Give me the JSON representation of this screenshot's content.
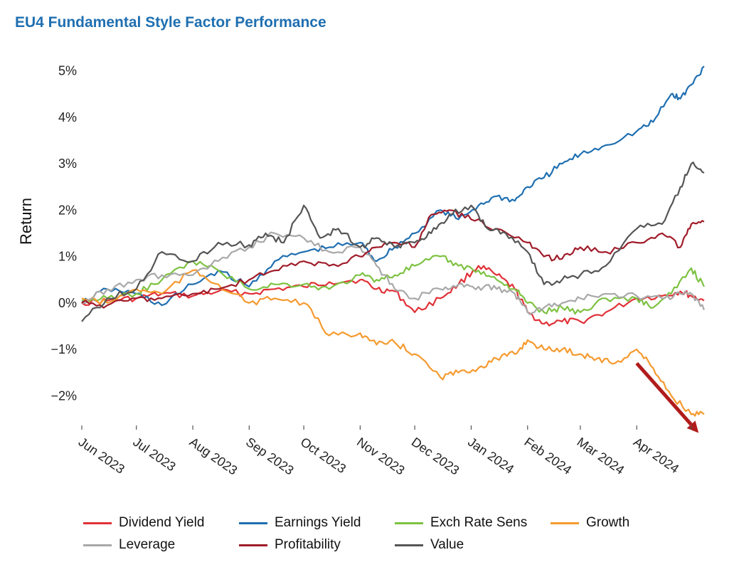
{
  "chart_data": {
    "type": "line",
    "title": "EU4 Fundamental Style Factor Performance",
    "ylabel": "Return",
    "xlabel": "",
    "ylim": [
      -2.7,
      5.3
    ],
    "yticks": [
      -2,
      -1,
      0,
      1,
      2,
      3,
      4,
      5
    ],
    "ytick_labels": [
      "−2%",
      "−1%",
      "0%",
      "1%",
      "2%",
      "3%",
      "4%",
      "5%"
    ],
    "xlim": [
      "2023-06-01",
      "2024-05-10"
    ],
    "xticks": [
      "2023-06-01",
      "2023-07-01",
      "2023-08-01",
      "2023-09-01",
      "2023-10-01",
      "2023-11-01",
      "2023-12-01",
      "2024-01-01",
      "2024-02-01",
      "2024-03-01",
      "2024-04-01",
      "2024-05-01"
    ],
    "xtick_labels": [
      "Jun 2023",
      "Jul 2023",
      "Aug 2023",
      "Sep 2023",
      "Oct 2023",
      "Nov 2023",
      "Dec 2023",
      "Jan 2024",
      "Feb 2024",
      "Mar 2024",
      "Apr 2024",
      ""
    ],
    "grid": false,
    "legend_position": "bottom",
    "annotation": {
      "type": "arrow",
      "from": [
        "2024-04-01",
        -1.3
      ],
      "to": [
        "2024-05-05",
        -2.8
      ],
      "color": "#b01c1c"
    },
    "series": [
      {
        "name": "Dividend Yield",
        "color": "#e03137",
        "points": [
          [
            "2023-06-01",
            0
          ],
          [
            "2023-06-15",
            0.05
          ],
          [
            "2023-07-01",
            0.1
          ],
          [
            "2023-07-15",
            0.2
          ],
          [
            "2023-08-01",
            0.15
          ],
          [
            "2023-08-15",
            0.25
          ],
          [
            "2023-09-01",
            0.2
          ],
          [
            "2023-09-15",
            0.3
          ],
          [
            "2023-10-01",
            0.35
          ],
          [
            "2023-10-15",
            0.45
          ],
          [
            "2023-11-01",
            0.5
          ],
          [
            "2023-11-10",
            0.3
          ],
          [
            "2023-11-20",
            0.25
          ],
          [
            "2023-12-01",
            -0.2
          ],
          [
            "2023-12-15",
            0.1
          ],
          [
            "2023-12-25",
            0.4
          ],
          [
            "2024-01-05",
            0.8
          ],
          [
            "2024-01-15",
            0.6
          ],
          [
            "2024-01-25",
            0.3
          ],
          [
            "2024-02-01",
            -0.2
          ],
          [
            "2024-02-10",
            -0.45
          ],
          [
            "2024-02-20",
            -0.4
          ],
          [
            "2024-03-01",
            -0.4
          ],
          [
            "2024-03-15",
            -0.2
          ],
          [
            "2024-04-01",
            0.1
          ],
          [
            "2024-04-15",
            0.15
          ],
          [
            "2024-04-25",
            0.25
          ],
          [
            "2024-05-01",
            0.15
          ],
          [
            "2024-05-08",
            0.05
          ]
        ]
      },
      {
        "name": "Earnings Yield",
        "color": "#1f6fb1",
        "points": [
          [
            "2023-06-01",
            0
          ],
          [
            "2023-06-15",
            0.3
          ],
          [
            "2023-07-01",
            0.2
          ],
          [
            "2023-07-15",
            -0.05
          ],
          [
            "2023-08-01",
            0.4
          ],
          [
            "2023-08-15",
            0.7
          ],
          [
            "2023-09-01",
            0.35
          ],
          [
            "2023-09-15",
            0.9
          ],
          [
            "2023-10-01",
            1.1
          ],
          [
            "2023-10-15",
            1.2
          ],
          [
            "2023-11-01",
            1.3
          ],
          [
            "2023-11-10",
            0.9
          ],
          [
            "2023-11-20",
            1.2
          ],
          [
            "2023-12-01",
            1.5
          ],
          [
            "2023-12-15",
            2.0
          ],
          [
            "2023-12-25",
            1.8
          ],
          [
            "2024-01-05",
            2.1
          ],
          [
            "2024-01-15",
            2.3
          ],
          [
            "2024-01-25",
            2.2
          ],
          [
            "2024-02-01",
            2.5
          ],
          [
            "2024-02-10",
            2.7
          ],
          [
            "2024-02-20",
            3.0
          ],
          [
            "2024-03-01",
            3.2
          ],
          [
            "2024-03-15",
            3.4
          ],
          [
            "2024-04-01",
            3.7
          ],
          [
            "2024-04-10",
            3.9
          ],
          [
            "2024-04-20",
            4.5
          ],
          [
            "2024-04-25",
            4.4
          ],
          [
            "2024-05-01",
            4.7
          ],
          [
            "2024-05-08",
            5.1
          ]
        ]
      },
      {
        "name": "Exch Rate Sens",
        "color": "#7dc242",
        "points": [
          [
            "2023-06-01",
            0.05
          ],
          [
            "2023-06-15",
            0.1
          ],
          [
            "2023-07-01",
            0.2
          ],
          [
            "2023-07-15",
            0.5
          ],
          [
            "2023-08-01",
            0.9
          ],
          [
            "2023-08-15",
            0.7
          ],
          [
            "2023-09-01",
            0.3
          ],
          [
            "2023-09-15",
            0.4
          ],
          [
            "2023-10-01",
            0.4
          ],
          [
            "2023-10-15",
            0.3
          ],
          [
            "2023-11-01",
            0.6
          ],
          [
            "2023-11-10",
            0.5
          ],
          [
            "2023-11-20",
            0.6
          ],
          [
            "2023-12-01",
            0.8
          ],
          [
            "2023-12-15",
            1.0
          ],
          [
            "2023-12-25",
            0.8
          ],
          [
            "2024-01-05",
            0.7
          ],
          [
            "2024-01-15",
            0.5
          ],
          [
            "2024-01-25",
            0.3
          ],
          [
            "2024-02-01",
            0.0
          ],
          [
            "2024-02-10",
            -0.2
          ],
          [
            "2024-02-20",
            -0.1
          ],
          [
            "2024-03-01",
            -0.2
          ],
          [
            "2024-03-15",
            0.1
          ],
          [
            "2024-04-01",
            0.1
          ],
          [
            "2024-04-10",
            -0.1
          ],
          [
            "2024-04-20",
            0.2
          ],
          [
            "2024-05-01",
            0.75
          ],
          [
            "2024-05-08",
            0.35
          ]
        ]
      },
      {
        "name": "Growth",
        "color": "#f59a2f",
        "points": [
          [
            "2023-06-01",
            0.1
          ],
          [
            "2023-06-15",
            0.0
          ],
          [
            "2023-07-01",
            0.3
          ],
          [
            "2023-07-15",
            0.2
          ],
          [
            "2023-08-01",
            0.7
          ],
          [
            "2023-08-15",
            0.4
          ],
          [
            "2023-09-01",
            0.0
          ],
          [
            "2023-09-15",
            0.1
          ],
          [
            "2023-10-01",
            0.0
          ],
          [
            "2023-10-15",
            -0.7
          ],
          [
            "2023-11-01",
            -0.65
          ],
          [
            "2023-11-10",
            -0.9
          ],
          [
            "2023-11-20",
            -0.85
          ],
          [
            "2023-12-01",
            -1.1
          ],
          [
            "2023-12-15",
            -1.6
          ],
          [
            "2023-12-25",
            -1.5
          ],
          [
            "2024-01-05",
            -1.4
          ],
          [
            "2024-01-15",
            -1.2
          ],
          [
            "2024-01-25",
            -1.1
          ],
          [
            "2024-02-01",
            -0.8
          ],
          [
            "2024-02-10",
            -1.0
          ],
          [
            "2024-02-20",
            -1.0
          ],
          [
            "2024-03-01",
            -1.1
          ],
          [
            "2024-03-10",
            -1.2
          ],
          [
            "2024-03-20",
            -1.3
          ],
          [
            "2024-04-01",
            -1.0
          ],
          [
            "2024-04-10",
            -1.4
          ],
          [
            "2024-04-20",
            -2.0
          ],
          [
            "2024-05-01",
            -2.4
          ],
          [
            "2024-05-08",
            -2.4
          ]
        ]
      },
      {
        "name": "Leverage",
        "color": "#a8a8a8",
        "points": [
          [
            "2023-06-01",
            0
          ],
          [
            "2023-06-15",
            0.3
          ],
          [
            "2023-07-01",
            0.5
          ],
          [
            "2023-07-15",
            0.6
          ],
          [
            "2023-08-01",
            0.6
          ],
          [
            "2023-08-15",
            0.9
          ],
          [
            "2023-09-01",
            1.2
          ],
          [
            "2023-09-15",
            1.5
          ],
          [
            "2023-10-01",
            1.4
          ],
          [
            "2023-10-15",
            1.1
          ],
          [
            "2023-11-01",
            1.2
          ],
          [
            "2023-11-10",
            0.8
          ],
          [
            "2023-11-20",
            0.3
          ],
          [
            "2023-12-01",
            0.1
          ],
          [
            "2023-12-15",
            0.3
          ],
          [
            "2023-12-25",
            0.4
          ],
          [
            "2024-01-05",
            0.35
          ],
          [
            "2024-01-15",
            0.3
          ],
          [
            "2024-01-25",
            0.2
          ],
          [
            "2024-02-01",
            -0.2
          ],
          [
            "2024-02-10",
            -0.1
          ],
          [
            "2024-02-20",
            0.0
          ],
          [
            "2024-03-01",
            0.1
          ],
          [
            "2024-03-15",
            0.2
          ],
          [
            "2024-04-01",
            0.15
          ],
          [
            "2024-04-15",
            0.1
          ],
          [
            "2024-04-25",
            0.2
          ],
          [
            "2024-05-01",
            0.2
          ],
          [
            "2024-05-08",
            -0.15
          ]
        ]
      },
      {
        "name": "Profitability",
        "color": "#a01c2a",
        "points": [
          [
            "2023-06-01",
            0
          ],
          [
            "2023-06-15",
            -0.05
          ],
          [
            "2023-07-01",
            0.1
          ],
          [
            "2023-07-15",
            0.1
          ],
          [
            "2023-08-01",
            0.2
          ],
          [
            "2023-08-15",
            0.3
          ],
          [
            "2023-09-01",
            0.5
          ],
          [
            "2023-09-15",
            0.7
          ],
          [
            "2023-10-01",
            0.9
          ],
          [
            "2023-10-15",
            0.8
          ],
          [
            "2023-11-01",
            1.0
          ],
          [
            "2023-11-10",
            1.2
          ],
          [
            "2023-11-20",
            1.3
          ],
          [
            "2023-12-01",
            1.2
          ],
          [
            "2023-12-10",
            1.9
          ],
          [
            "2023-12-20",
            2.0
          ],
          [
            "2024-01-01",
            1.8
          ],
          [
            "2024-01-15",
            1.6
          ],
          [
            "2024-02-01",
            1.3
          ],
          [
            "2024-02-10",
            1.0
          ],
          [
            "2024-02-20",
            0.95
          ],
          [
            "2024-03-01",
            1.2
          ],
          [
            "2024-03-15",
            1.1
          ],
          [
            "2024-04-01",
            1.3
          ],
          [
            "2024-04-15",
            1.5
          ],
          [
            "2024-04-25",
            1.2
          ],
          [
            "2024-05-01",
            1.7
          ],
          [
            "2024-05-08",
            1.75
          ]
        ]
      },
      {
        "name": "Value",
        "color": "#555555",
        "points": [
          [
            "2023-06-01",
            -0.4
          ],
          [
            "2023-06-15",
            0.1
          ],
          [
            "2023-07-01",
            0.3
          ],
          [
            "2023-07-15",
            1.1
          ],
          [
            "2023-08-01",
            0.9
          ],
          [
            "2023-08-15",
            1.3
          ],
          [
            "2023-09-01",
            1.25
          ],
          [
            "2023-09-10",
            1.5
          ],
          [
            "2023-09-20",
            1.3
          ],
          [
            "2023-10-01",
            2.1
          ],
          [
            "2023-10-10",
            1.4
          ],
          [
            "2023-10-20",
            1.6
          ],
          [
            "2023-11-01",
            1.2
          ],
          [
            "2023-11-10",
            1.4
          ],
          [
            "2023-11-20",
            1.2
          ],
          [
            "2023-12-01",
            1.3
          ],
          [
            "2023-12-10",
            1.5
          ],
          [
            "2023-12-20",
            1.9
          ],
          [
            "2024-01-01",
            2.1
          ],
          [
            "2024-01-10",
            1.6
          ],
          [
            "2024-01-20",
            1.5
          ],
          [
            "2024-02-01",
            1.1
          ],
          [
            "2024-02-10",
            0.4
          ],
          [
            "2024-02-20",
            0.5
          ],
          [
            "2024-03-01",
            0.6
          ],
          [
            "2024-03-15",
            0.8
          ],
          [
            "2024-04-01",
            1.6
          ],
          [
            "2024-04-15",
            1.7
          ],
          [
            "2024-04-25",
            2.5
          ],
          [
            "2024-05-01",
            3.0
          ],
          [
            "2024-05-08",
            2.8
          ]
        ]
      }
    ]
  }
}
